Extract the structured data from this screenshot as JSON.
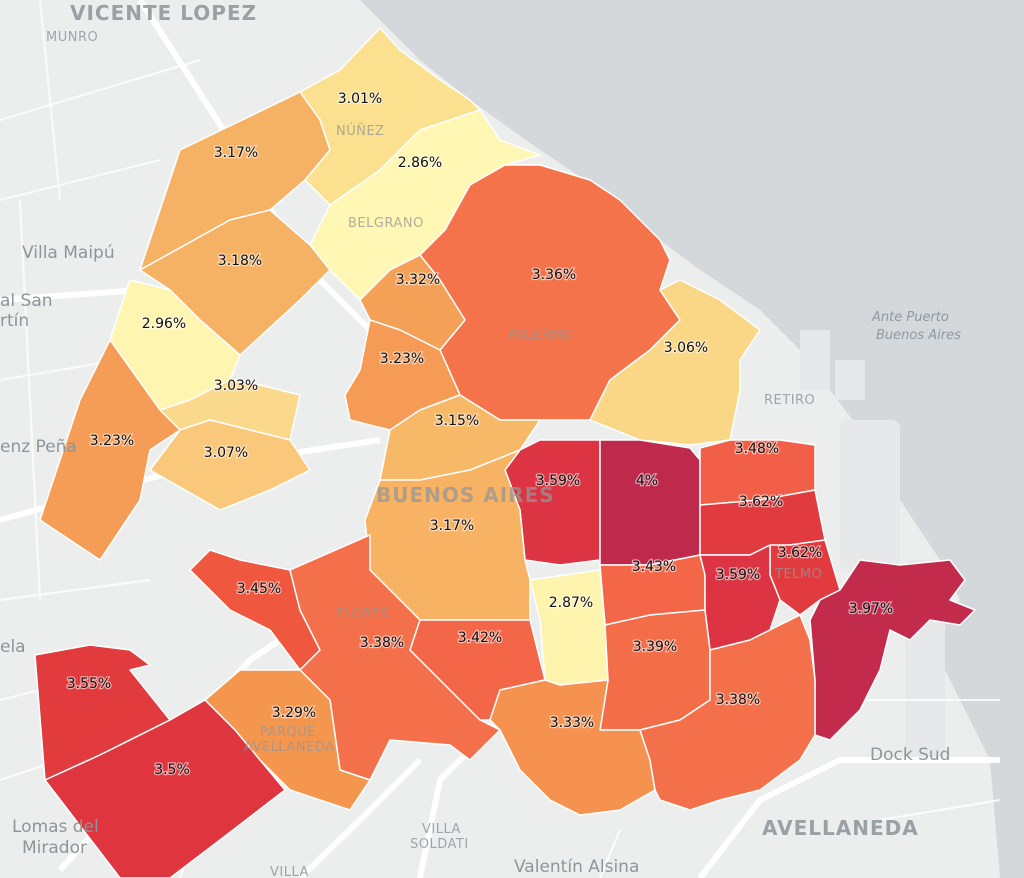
{
  "map": {
    "place_labels": {
      "vicente_lopez": "VICENTE LOPEZ",
      "munro": "MUNRO",
      "villa_maipu": "Villa Maipú",
      "al_san_martin_1": "al San",
      "al_san_martin_2": "rtín",
      "enz_pena": "enz Peña",
      "ela": "ela",
      "lomas_1": "Lomas del",
      "lomas_2": "Mirador",
      "nunez": "NÚÑEZ",
      "belgrano": "BELGRANO",
      "palermo": "PALERMO",
      "retiro": "RETIRO",
      "buenos_aires": "BUENOS AIRES",
      "flores": "FLORES",
      "parque_1": "PARQUE",
      "parque_2": "AVELLANEDA",
      "san_telmo": "TELMO",
      "ante_puerto_1": "Ante Puerto",
      "ante_puerto_2": "Buenos Aires",
      "dock_sud": "Dock Sud",
      "avellaneda": "AVELLANEDA",
      "villa_soldati_1": "VILLA",
      "villa_soldati_2": "SOLDATI",
      "valentin_alsina": "Valentín Alsina",
      "villa_bottom": "VILLA"
    },
    "color_scale": {
      "low": "#fff7b3",
      "mid_low": "#f9d986",
      "mid": "#f7a85a",
      "mid_high": "#f4734a",
      "high": "#e0393e",
      "very_high": "#c02a4b"
    },
    "regions": [
      {
        "id": "nunez",
        "value": "3.01%",
        "color": "#fbe08f"
      },
      {
        "id": "saavedra",
        "value": "3.17%",
        "color": "#f6b264"
      },
      {
        "id": "belgrano",
        "value": "2.86%",
        "color": "#fff7b3"
      },
      {
        "id": "villa-urquiza",
        "value": "3.18%",
        "color": "#f6b264"
      },
      {
        "id": "palermo",
        "value": "3.36%",
        "color": "#f4734a"
      },
      {
        "id": "colegiales",
        "value": "3.32%",
        "color": "#f5a057"
      },
      {
        "id": "villa-pueyrredon",
        "value": "2.96%",
        "color": "#fef5b1"
      },
      {
        "id": "retiro",
        "value": "3.06%",
        "color": "#fad787"
      },
      {
        "id": "chacarita",
        "value": "3.23%",
        "color": "#f59b55"
      },
      {
        "id": "agronomia",
        "value": "3.03%",
        "color": "#fbd98c"
      },
      {
        "id": "villa-devoto",
        "value": "3.23%",
        "color": "#f59d56"
      },
      {
        "id": "villa-crespo",
        "value": "3.15%",
        "color": "#f7b868"
      },
      {
        "id": "villa-del-parque",
        "value": "3.07%",
        "color": "#f9c87a"
      },
      {
        "id": "recoleta",
        "value": "3.59%",
        "color": "#dc3442"
      },
      {
        "id": "balvanera",
        "value": "4%",
        "color": "#bf2a4c"
      },
      {
        "id": "san-nicolas",
        "value": "3.48%",
        "color": "#f25f48"
      },
      {
        "id": "monserrat",
        "value": "3.62%",
        "color": "#e13b3f"
      },
      {
        "id": "caballito",
        "value": "3.17%",
        "color": "#f7b264"
      },
      {
        "id": "san-telmo",
        "value": "3.62%",
        "color": "#e13b3f"
      },
      {
        "id": "san-cristobal",
        "value": "3.43%",
        "color": "#f36648"
      },
      {
        "id": "constitucion",
        "value": "3.59%",
        "color": "#dc3442"
      },
      {
        "id": "floresta",
        "value": "3.45%",
        "color": "#f0573f"
      },
      {
        "id": "puerto-madero",
        "value": "3.97%",
        "color": "#c22b4c"
      },
      {
        "id": "boedo",
        "value": "2.87%",
        "color": "#fff4ae"
      },
      {
        "id": "flores",
        "value": "3.38%",
        "color": "#f4704a"
      },
      {
        "id": "parque-chacabuco",
        "value": "3.42%",
        "color": "#f36748"
      },
      {
        "id": "parque-patricios",
        "value": "3.39%",
        "color": "#f36d49"
      },
      {
        "id": "liniers",
        "value": "3.55%",
        "color": "#e13b3e"
      },
      {
        "id": "parque-avellaneda",
        "value": "3.29%",
        "color": "#f5964f"
      },
      {
        "id": "nueva-pompeya",
        "value": "3.33%",
        "color": "#f59250"
      },
      {
        "id": "barracas",
        "value": "3.38%",
        "color": "#f4704a"
      },
      {
        "id": "mataderos",
        "value": "3.5%",
        "color": "#de353e"
      }
    ]
  }
}
